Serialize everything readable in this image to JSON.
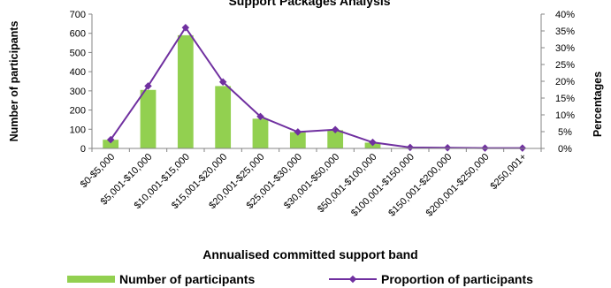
{
  "chart_data": {
    "type": "bar",
    "title": "Support Packages Analysis",
    "xlabel": "Annualised committed support band",
    "ylabel_left": "Number of participants",
    "ylabel_right": "Percentages",
    "categories": [
      "$0-$5,000",
      "$5,001-$10,000",
      "$10,001-$15,000",
      "$15,001-$20,000",
      "$20,001-$25,000",
      "$25,001-$30,000",
      "$30,001-$50,000",
      "$50,001-$100,000",
      "$100,001-$150,000",
      "$150,001-$200,000",
      "$200,001-$250,000",
      "$250,001+"
    ],
    "left_ticks": [
      "0",
      "100",
      "200",
      "300",
      "400",
      "500",
      "600",
      "700"
    ],
    "right_ticks": [
      "0%",
      "5%",
      "10%",
      "15%",
      "20%",
      "25%",
      "30%",
      "35%",
      "40%"
    ],
    "ylim_left": [
      0,
      700
    ],
    "ylim_right": [
      0,
      40
    ],
    "series": [
      {
        "name": "Number of participants",
        "kind": "bar",
        "axis": "left",
        "color": "#92d050",
        "values": [
          45,
          305,
          590,
          325,
          155,
          85,
          95,
          30,
          3,
          2,
          1,
          1
        ]
      },
      {
        "name": "Proportion of participants",
        "kind": "line",
        "axis": "right",
        "color": "#7030a0",
        "values": [
          2.6,
          18.6,
          36.0,
          19.8,
          9.5,
          4.9,
          5.6,
          1.8,
          0.3,
          0.2,
          0.1,
          0.1
        ]
      }
    ],
    "grid": false,
    "legend_position": "bottom"
  }
}
